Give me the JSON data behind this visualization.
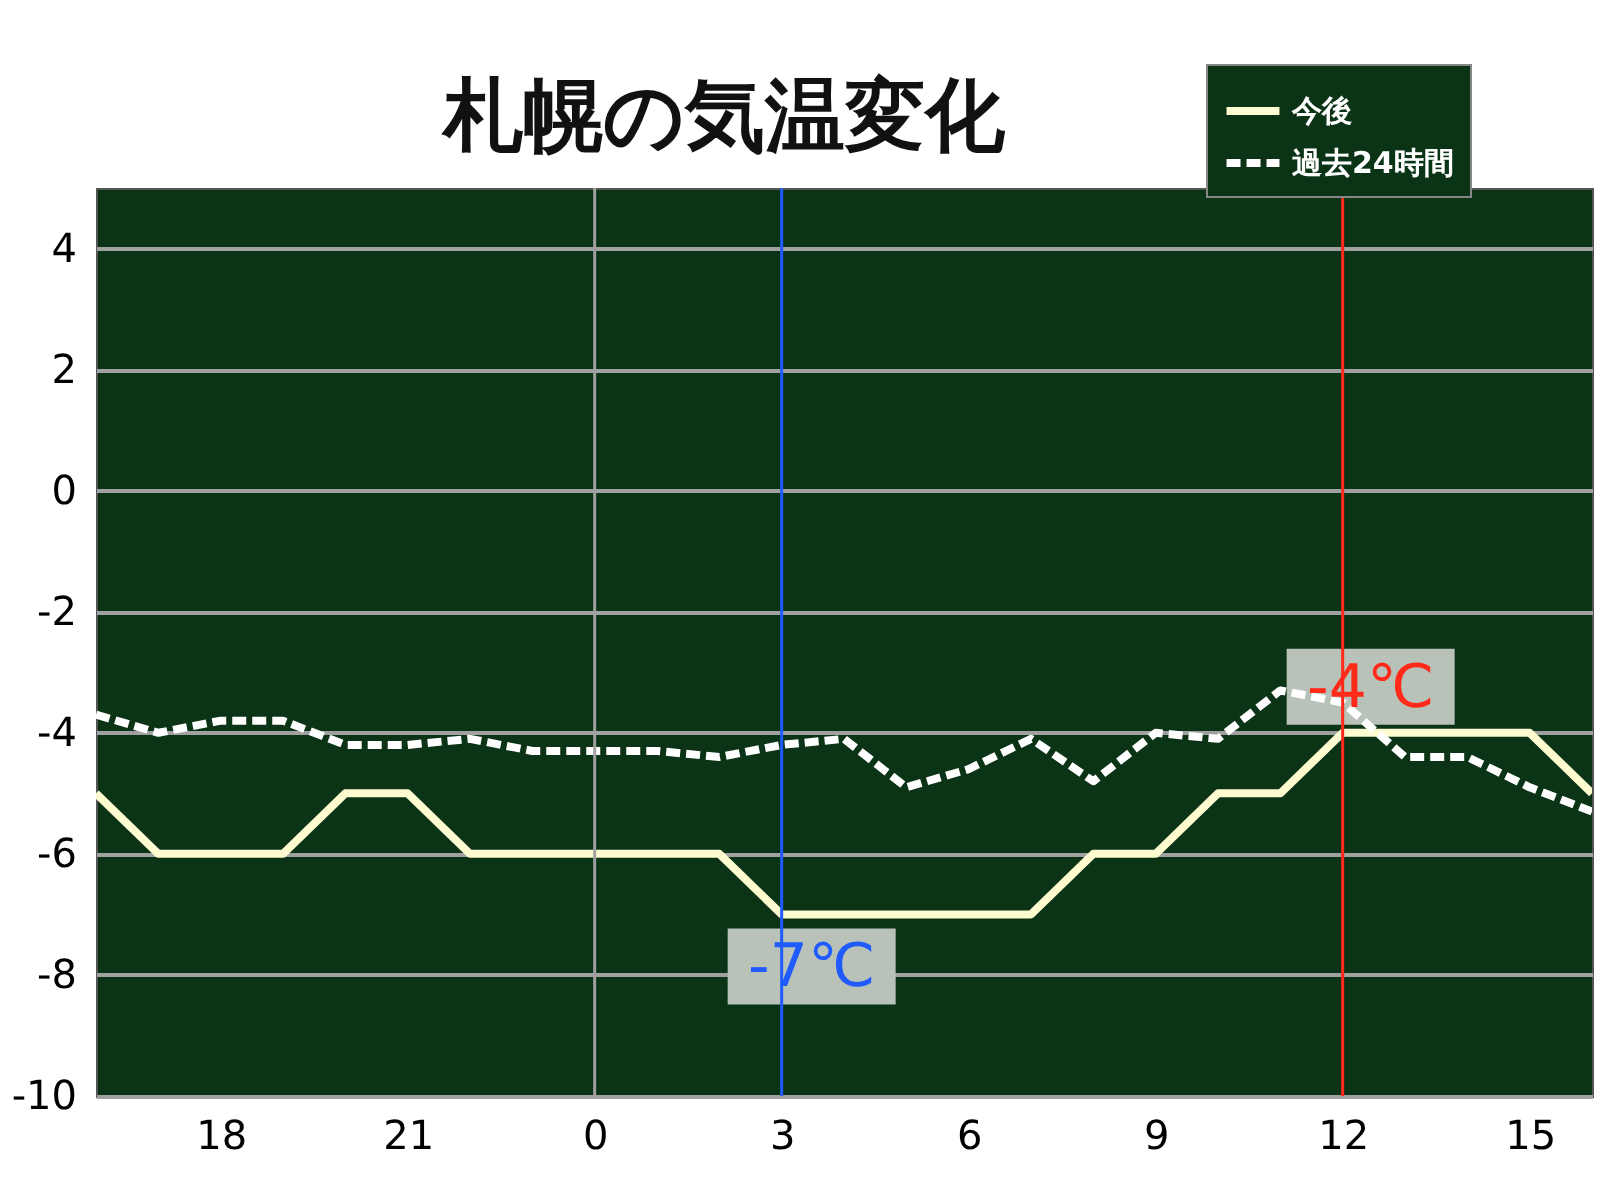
{
  "chart_data": {
    "type": "line",
    "title": "札幌の気温変化",
    "categories": [
      null,
      null,
      "18",
      null,
      null,
      "21",
      null,
      null,
      "0",
      null,
      null,
      "3",
      null,
      null,
      "6",
      null,
      null,
      "9",
      null,
      null,
      "12",
      null,
      null,
      "15",
      null
    ],
    "series": [
      {
        "name": "今後",
        "color": "#fffbd0",
        "line_style": "solid",
        "values": [
          -5,
          -6,
          -6,
          -6,
          -5,
          -5,
          -6,
          -6,
          -6,
          -6,
          -6,
          -7,
          -7,
          -7,
          -7,
          -7,
          -6,
          -6,
          -5,
          -5,
          -4,
          -4,
          -4,
          -4,
          -5
        ]
      },
      {
        "name": "過去24時間",
        "color": "#ffffff",
        "line_style": "dashed",
        "values": [
          -3.7,
          -4.0,
          -3.8,
          -3.8,
          -4.2,
          -4.2,
          -4.1,
          -4.3,
          -4.3,
          -4.3,
          -4.4,
          -4.2,
          -4.1,
          -4.9,
          -4.6,
          -4.1,
          -4.8,
          -4.0,
          -4.1,
          -3.3,
          -3.5,
          -4.4,
          -4.4,
          -4.9,
          -5.3
        ]
      }
    ],
    "ylim": [
      -10,
      5
    ],
    "yticks": [
      -10,
      -8,
      -6,
      -4,
      -2,
      0,
      2,
      4
    ],
    "grid": "y",
    "legend": "top right",
    "ref_lines": [
      {
        "axis": "x",
        "value": "0",
        "color": "#a0a0a0"
      },
      {
        "axis": "x",
        "value": "3",
        "color": "#1f5bff"
      },
      {
        "axis": "x",
        "value": "12",
        "color": "#ff2a1a"
      }
    ],
    "annotations": [
      {
        "text": "-7℃",
        "x": "3",
        "y": -7
      },
      {
        "text": "-4℃",
        "x": "12",
        "y": -4
      }
    ]
  }
}
